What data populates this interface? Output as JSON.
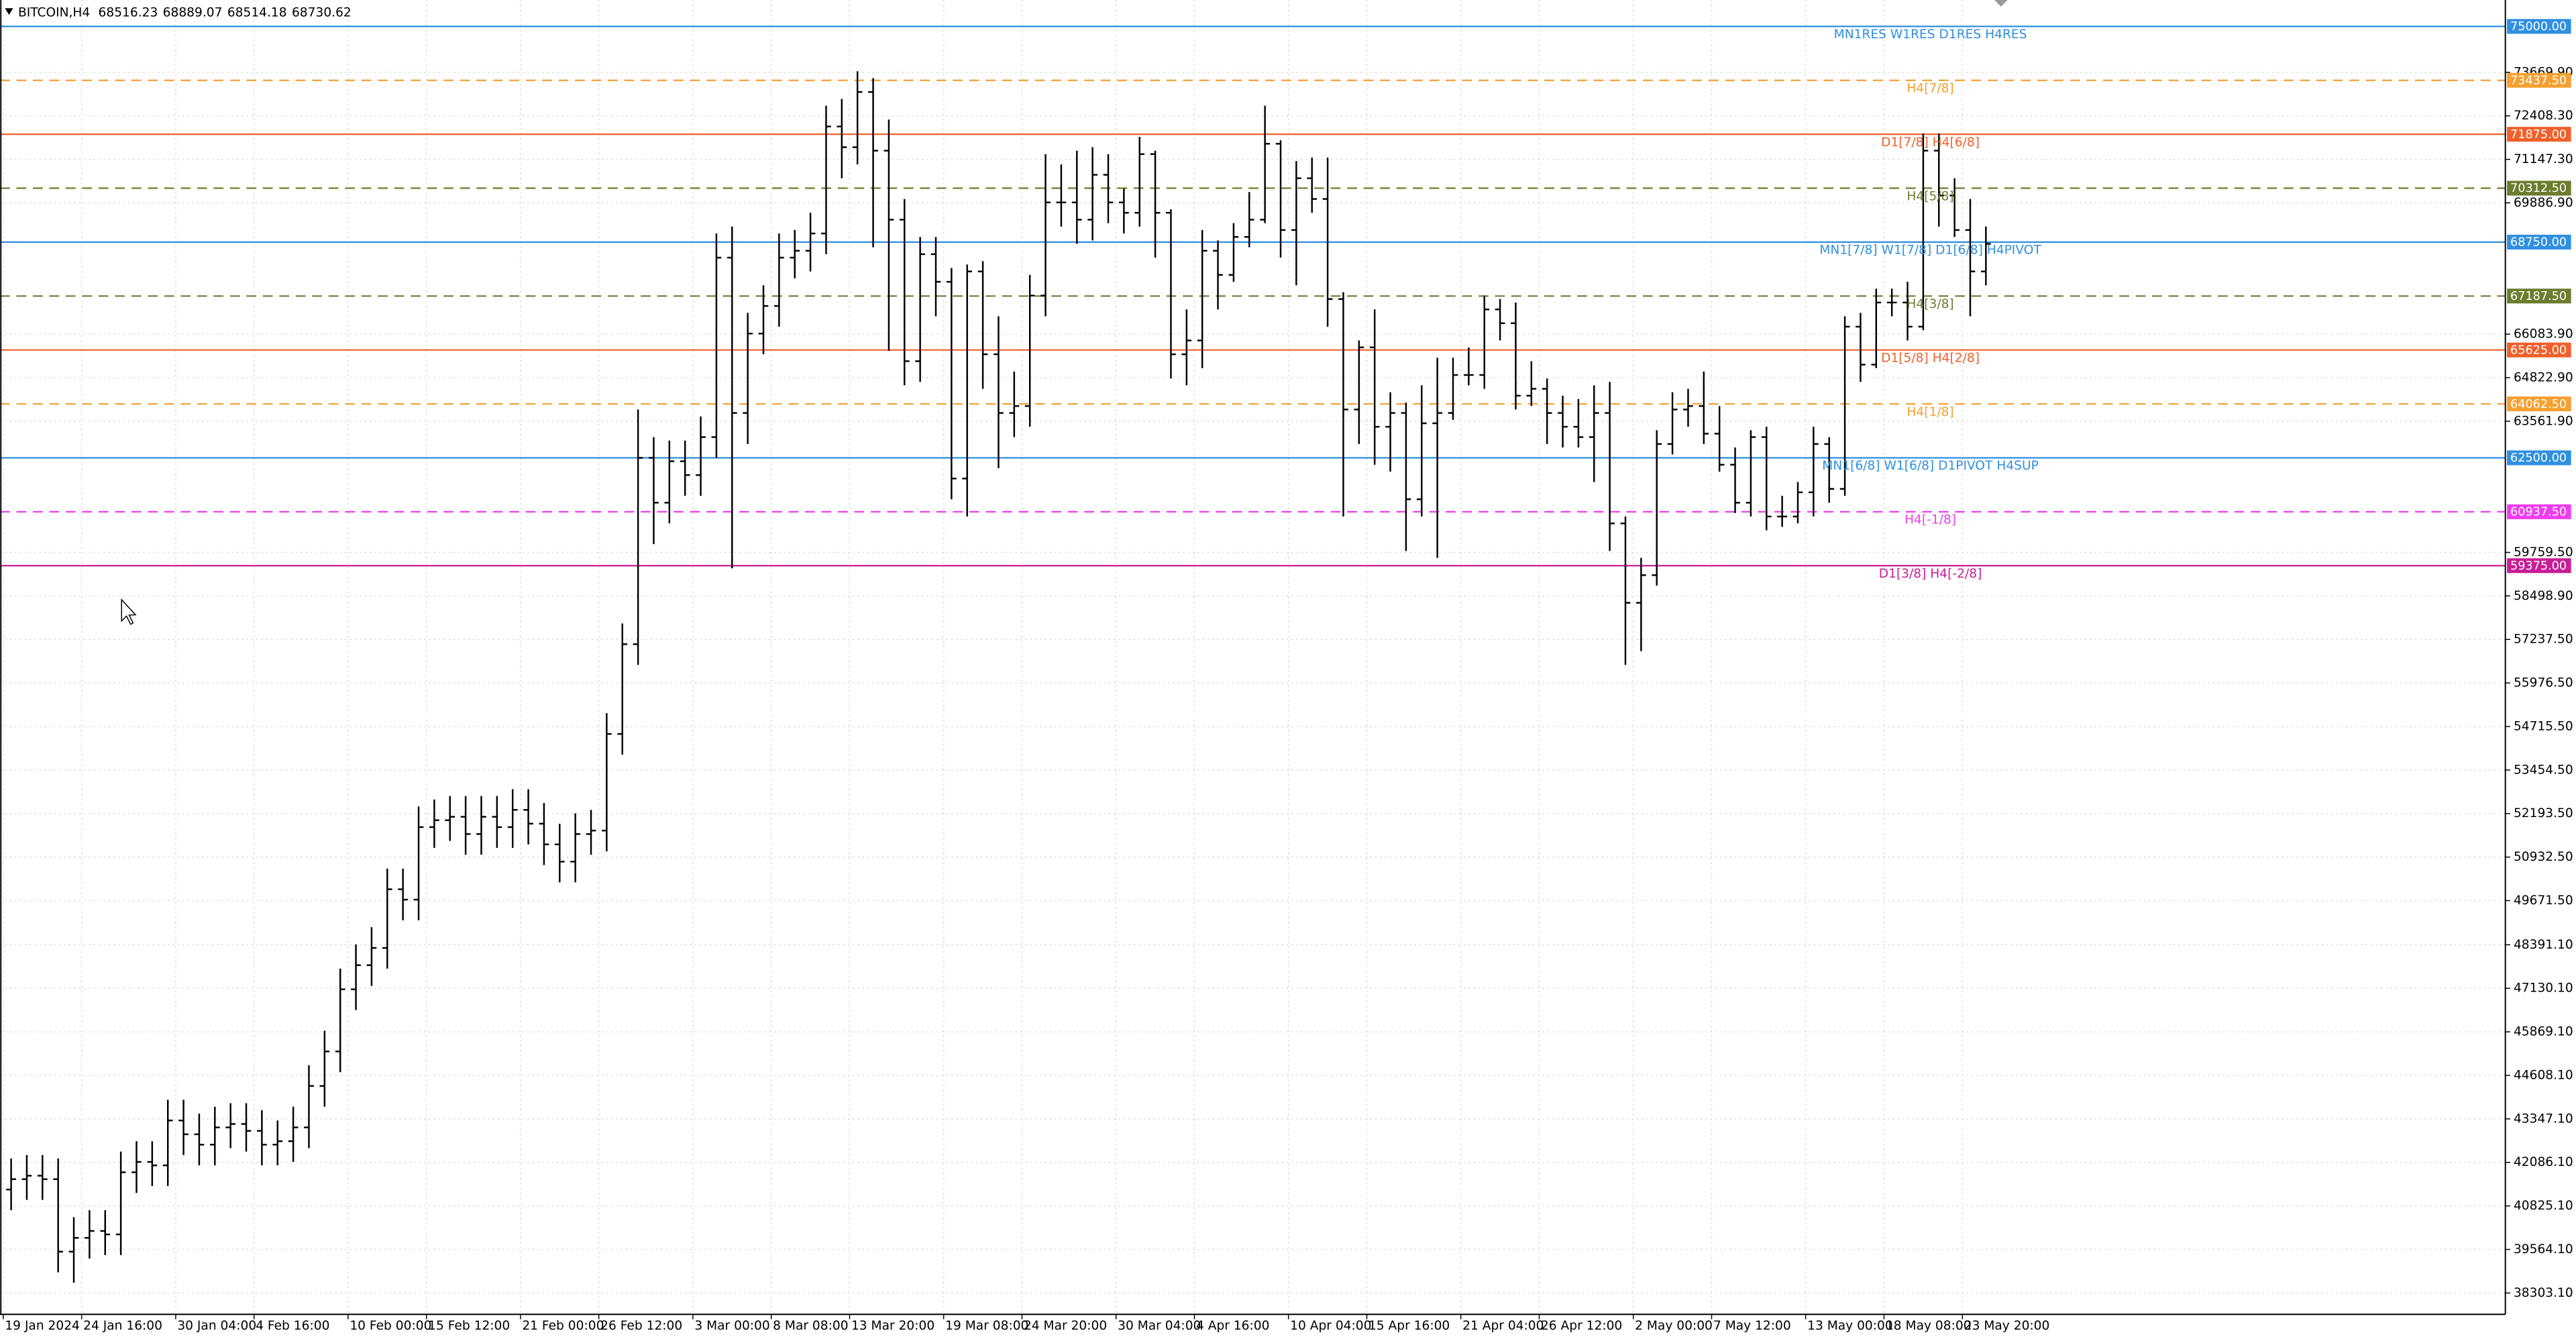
{
  "chart_data": {
    "type": "ohlc",
    "title": "BITCOIN,H4",
    "quote": [
      68516.23,
      68889.07,
      68514.18,
      68730.62
    ],
    "ylim": [
      37684,
      75764
    ],
    "yticks": [
      {
        "value": 73669.9,
        "label": "73669.90"
      },
      {
        "value": 72408.3,
        "label": "72408.30"
      },
      {
        "value": 71147.3,
        "label": "71147.30"
      },
      {
        "value": 69886.9,
        "label": "69886.90"
      },
      {
        "value": 66083.9,
        "label": "66083.90"
      },
      {
        "value": 64822.9,
        "label": "64822.90"
      },
      {
        "value": 63561.9,
        "label": "63561.90"
      },
      {
        "value": 59759.5,
        "label": "59759.50"
      },
      {
        "value": 58498.9,
        "label": "58498.90"
      },
      {
        "value": 57237.5,
        "label": "57237.50"
      },
      {
        "value": 55976.5,
        "label": "55976.50"
      },
      {
        "value": 54715.5,
        "label": "54715.50"
      },
      {
        "value": 53454.5,
        "label": "53454.50"
      },
      {
        "value": 52193.5,
        "label": "52193.50"
      },
      {
        "value": 50932.5,
        "label": "50932.50"
      },
      {
        "value": 49671.5,
        "label": "49671.50"
      },
      {
        "value": 48391.1,
        "label": "48391.10"
      },
      {
        "value": 47130.1,
        "label": "47130.10"
      },
      {
        "value": 45869.1,
        "label": "45869.10"
      },
      {
        "value": 44608.1,
        "label": "44608.10"
      },
      {
        "value": 43347.1,
        "label": "43347.10"
      },
      {
        "value": 42086.1,
        "label": "42086.10"
      },
      {
        "value": 40825.1,
        "label": "40825.10"
      },
      {
        "value": 39564.1,
        "label": "39564.10"
      },
      {
        "value": 38303.1,
        "label": "38303.10"
      }
    ],
    "grid": true,
    "bar_color": "#000000",
    "categories": [
      "19 Jan 2024",
      null,
      null,
      null,
      null,
      "24 Jan 16:00",
      null,
      null,
      null,
      null,
      null,
      "30 Jan 04:00",
      null,
      null,
      null,
      null,
      "4 Feb 16:00",
      null,
      null,
      null,
      null,
      null,
      "10 Feb 00:00",
      null,
      null,
      null,
      null,
      "15 Feb 12:00",
      null,
      null,
      null,
      null,
      null,
      "21 Feb 00:00",
      null,
      null,
      null,
      null,
      "26 Feb 12:00",
      null,
      null,
      null,
      null,
      null,
      "3 Mar 00:00",
      null,
      null,
      null,
      null,
      "8 Mar 08:00",
      null,
      null,
      null,
      null,
      "13 Mar 20:00",
      null,
      null,
      null,
      null,
      null,
      "19 Mar 08:00",
      null,
      null,
      null,
      null,
      "24 Mar 20:00",
      null,
      null,
      null,
      null,
      null,
      "30 Mar 04:00",
      null,
      null,
      null,
      null,
      "4 Apr 16:00",
      null,
      null,
      null,
      null,
      null,
      "10 Apr 04:00",
      null,
      null,
      null,
      null,
      "15 Apr 16:00",
      null,
      null,
      null,
      null,
      null,
      "21 Apr 04:00",
      null,
      null,
      null,
      null,
      "26 Apr 12:00",
      null,
      null,
      null,
      null,
      null,
      "2 May 00:00",
      null,
      null,
      null,
      null,
      "7 May 12:00",
      null,
      null,
      null,
      null,
      null,
      "13 May 00:00",
      null,
      null,
      null,
      null,
      "18 May 08:00",
      null,
      null,
      null,
      null,
      "23 May 20:00",
      null
    ],
    "open": [
      41300,
      41600,
      41700,
      41600,
      39500,
      39900,
      40100,
      40000,
      41800,
      42100,
      42000,
      43300,
      42900,
      42600,
      43100,
      43200,
      43000,
      42600,
      42700,
      43100,
      44300,
      45300,
      47100,
      47800,
      48300,
      50000,
      49700,
      51800,
      52000,
      52100,
      51600,
      52100,
      51800,
      52300,
      51900,
      51300,
      50800,
      51600,
      51700,
      54500,
      57100,
      62500,
      61200,
      62400,
      62000,
      63100,
      68300,
      63800,
      66100,
      66900,
      68300,
      68500,
      69000,
      72100,
      71500,
      73100,
      71400,
      69400,
      65300,
      68400,
      67600,
      61900,
      67900,
      65500,
      63800,
      64000,
      67200,
      69900,
      69900,
      69400,
      70700,
      69900,
      69600,
      71300,
      69600,
      65500,
      65900,
      68500,
      67800,
      68900,
      69400,
      71600,
      69100,
      70600,
      70000,
      67100,
      63900,
      65700,
      63400,
      63800,
      61300,
      63500,
      63800,
      64900,
      64900,
      66800,
      66400,
      64300,
      64500,
      63800,
      63400,
      63100,
      63800,
      60600,
      58300,
      59100,
      62900,
      63900,
      64000,
      63200,
      62300,
      61200,
      63100,
      60800,
      60800,
      61500,
      62900,
      61600,
      66300,
      65200,
      67000,
      67000,
      66300,
      71400,
      70100,
      69100,
      67900
    ],
    "high": [
      42200,
      42300,
      42300,
      42200,
      40500,
      40700,
      40700,
      42400,
      42700,
      42700,
      43900,
      43900,
      43500,
      43700,
      43800,
      43800,
      43600,
      43300,
      43700,
      44900,
      45900,
      47700,
      48400,
      48900,
      50600,
      50600,
      52400,
      52600,
      52700,
      52700,
      52700,
      52700,
      52900,
      52900,
      52500,
      51900,
      52200,
      52300,
      55100,
      57700,
      63900,
      63100,
      63000,
      63000,
      63700,
      69000,
      69200,
      66700,
      67500,
      69000,
      69100,
      69600,
      72700,
      72900,
      73700,
      73500,
      72300,
      70000,
      68900,
      68900,
      68000,
      68100,
      68200,
      66600,
      65000,
      67800,
      71300,
      71000,
      71400,
      71500,
      71300,
      70300,
      71800,
      71400,
      69700,
      66800,
      69100,
      68800,
      69300,
      70200,
      72700,
      71700,
      71100,
      71200,
      71200,
      67300,
      65900,
      66800,
      64400,
      64100,
      64600,
      65400,
      65400,
      65700,
      67200,
      67100,
      67000,
      65300,
      64800,
      64300,
      64200,
      64600,
      64700,
      60800,
      59600,
      63300,
      64400,
      64500,
      65000,
      64000,
      62800,
      63300,
      63400,
      61400,
      61800,
      63400,
      63100,
      66600,
      66700,
      67400,
      67400,
      67600,
      71900,
      71900,
      70600,
      70000,
      69200
    ],
    "low": [
      40700,
      41000,
      41000,
      38900,
      38600,
      39300,
      39400,
      39400,
      41200,
      41400,
      41400,
      42300,
      42000,
      42000,
      42500,
      42400,
      42000,
      42000,
      42100,
      42500,
      43700,
      44700,
      46500,
      47200,
      47700,
      49100,
      49100,
      51200,
      51400,
      51000,
      51000,
      51200,
      51200,
      51300,
      50700,
      50200,
      50200,
      51000,
      51100,
      53900,
      56500,
      60000,
      60600,
      61400,
      61400,
      62500,
      59300,
      62900,
      65500,
      66300,
      67700,
      67900,
      68400,
      70600,
      71000,
      68600,
      65600,
      64600,
      64700,
      66600,
      61300,
      60800,
      64500,
      62200,
      63100,
      63400,
      66600,
      69200,
      68700,
      68800,
      69300,
      69000,
      69200,
      68300,
      64800,
      64600,
      65100,
      66800,
      67600,
      68600,
      69300,
      68300,
      67500,
      69600,
      66300,
      60800,
      62900,
      62300,
      62100,
      59800,
      60800,
      59600,
      63600,
      64600,
      64500,
      65900,
      63900,
      64000,
      62900,
      62800,
      62800,
      61800,
      59800,
      56500,
      56900,
      58800,
      62600,
      63400,
      62900,
      62100,
      60900,
      60800,
      60400,
      60500,
      60600,
      60800,
      61200,
      61400,
      64700,
      65100,
      66600,
      65900,
      66200,
      69200,
      68900,
      66600,
      67500
    ],
    "close": [
      41600,
      41700,
      41600,
      39500,
      39900,
      40100,
      40000,
      41800,
      42100,
      42000,
      43300,
      42900,
      42600,
      43100,
      43200,
      43000,
      42600,
      42700,
      43100,
      44300,
      45300,
      47100,
      47800,
      48300,
      50000,
      49700,
      51800,
      52000,
      52100,
      51600,
      52100,
      51800,
      52300,
      51900,
      51300,
      50800,
      51600,
      51700,
      54500,
      57100,
      62500,
      61200,
      62400,
      62000,
      63100,
      68300,
      63800,
      66100,
      66900,
      68300,
      68500,
      69000,
      72100,
      71500,
      73100,
      71400,
      69400,
      65300,
      68400,
      67600,
      61900,
      67900,
      65500,
      63800,
      64000,
      67200,
      69900,
      69900,
      69400,
      70700,
      69900,
      69600,
      71300,
      69600,
      65500,
      65900,
      68500,
      67800,
      68900,
      69400,
      71600,
      69100,
      70600,
      70000,
      67100,
      63900,
      65700,
      63400,
      63800,
      61300,
      63500,
      63800,
      64900,
      64900,
      66800,
      66400,
      64300,
      64500,
      63800,
      63400,
      63100,
      63800,
      60600,
      58300,
      59100,
      62900,
      63900,
      64000,
      63200,
      62300,
      61200,
      63100,
      60800,
      60800,
      61500,
      62900,
      61600,
      66300,
      65200,
      67000,
      67000,
      66300,
      71400,
      70100,
      69100,
      67900,
      68700
    ],
    "levels": [
      {
        "name": "MN1RES W1RES D1RES H4RES",
        "value": 75000,
        "value_label": "75000.00",
        "color": "#2f8fe0",
        "style": "solid"
      },
      {
        "name": "H4[7/8]",
        "value": 73437.5,
        "value_label": "73437.50",
        "color": "#f5a030",
        "style": "dashed"
      },
      {
        "name": "D1[7/8] H4[6/8]",
        "value": 71875,
        "value_label": "71875.00",
        "color": "#f0602a",
        "style": "solid"
      },
      {
        "name": "H4[5/8]",
        "value": 70312.5,
        "value_label": "70312.50",
        "color": "#6b7d2e",
        "style": "dashed"
      },
      {
        "name": "MN1[7/8] W1[7/8] D1[6/8] H4PIVOT",
        "value": 68750,
        "value_label": "68750.00",
        "color": "#2f8fe0",
        "style": "solid"
      },
      {
        "name": "H4[3/8]",
        "value": 67187.5,
        "value_label": "67187.50",
        "color": "#6b7d2e",
        "style": "dashed"
      },
      {
        "name": "D1[5/8] H4[2/8]",
        "value": 65625,
        "value_label": "65625.00",
        "color": "#f0602a",
        "style": "solid"
      },
      {
        "name": "H4[1/8]",
        "value": 64062.5,
        "value_label": "64062.50",
        "color": "#f5a030",
        "style": "dashed"
      },
      {
        "name": "MN1[6/8] W1[6/8] D1PIVOT H4SUP",
        "value": 62500,
        "value_label": "62500.00",
        "color": "#2f8fe0",
        "style": "solid"
      },
      {
        "name": "H4[-1/8]",
        "value": 60937.5,
        "value_label": "60937.50",
        "color": "#f03cf0",
        "style": "dashed"
      },
      {
        "name": "D1[3/8] H4[-2/8]",
        "value": 59375,
        "value_label": "59375.00",
        "color": "#c81e96",
        "style": "solid"
      }
    ]
  }
}
